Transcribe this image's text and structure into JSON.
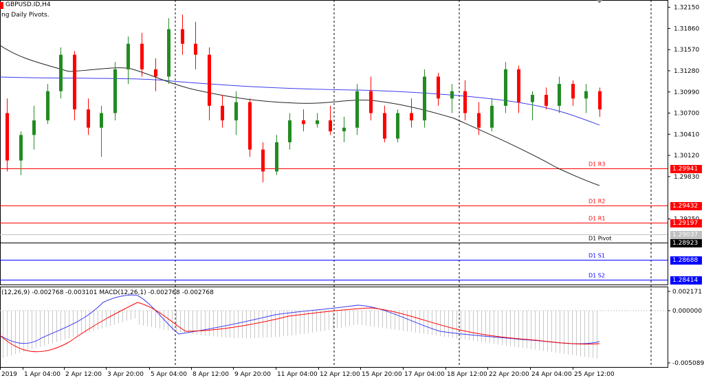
{
  "window": {
    "symbol_title": "GBPUSD.ID,H4",
    "indicator_name": "ng Daily Pivots.",
    "macd_title": "(12,26,9) -0.002768 -0.003101 MACD(12,26,1) -0.002768 -0.002768"
  },
  "colors": {
    "bull": "#228b22",
    "bear": "#ff0000",
    "ma_slow": "#3a3af0",
    "ma_fast": "#333333",
    "resistance": "#ff0000",
    "support": "#0000ff",
    "pivot": "#000000",
    "grid": "#000000"
  },
  "price_axis": {
    "ticks": [
      "1.32150",
      "1.31860",
      "1.31570",
      "1.31280",
      "1.30990",
      "1.30700",
      "1.30410",
      "1.30120",
      "1.29830",
      "1.29250"
    ],
    "price_min": 1.2835,
    "price_max": 1.3225,
    "current_price": "1.29037"
  },
  "pivots": [
    {
      "name": "D1 R3",
      "value": "1.29941",
      "type": "resistance"
    },
    {
      "name": "D1 R2",
      "value": "1.29432",
      "type": "resistance"
    },
    {
      "name": "D1 R1",
      "value": "1.29197",
      "type": "resistance"
    },
    {
      "name": "D1 Pivot",
      "value": "1.28923",
      "type": "pivot"
    },
    {
      "name": "D1 S1",
      "value": "1.28688",
      "type": "support"
    },
    {
      "name": "D1 S2",
      "value": "1.28414",
      "type": "support"
    }
  ],
  "macd_axis": {
    "ticks": [
      "0.002171",
      "0.000000",
      "-0.005089"
    ]
  },
  "time_axis": {
    "labels": [
      "2019",
      "1 Apr 04:00",
      "2 Apr 12:00",
      "3 Apr 20:00",
      "5 Apr 04:00",
      "8 Apr 12:00",
      "9 Apr 20:00",
      "11 Apr 04:00",
      "12 Apr 12:00",
      "15 Apr 20:00",
      "17 Apr 04:00",
      "18 Apr 12:00",
      "22 Apr 20:00",
      "24 Apr 04:00",
      "25 Apr 12:00"
    ]
  },
  "chart_data": {
    "type": "candlestick",
    "symbol": "GBPUSD.ID",
    "timeframe": "H4",
    "candles": [
      [
        1.307,
        1.309,
        1.299,
        1.3005
      ],
      [
        1.3005,
        1.3045,
        1.2985,
        1.304
      ],
      [
        1.304,
        1.308,
        1.302,
        1.306
      ],
      [
        1.306,
        1.311,
        1.3055,
        1.31
      ],
      [
        1.31,
        1.316,
        1.309,
        1.315
      ],
      [
        1.315,
        1.3155,
        1.306,
        1.3075
      ],
      [
        1.3075,
        1.309,
        1.304,
        1.305
      ],
      [
        1.305,
        1.308,
        1.301,
        1.307
      ],
      [
        1.307,
        1.314,
        1.306,
        1.313
      ],
      [
        1.313,
        1.3175,
        1.311,
        1.3165
      ],
      [
        1.3165,
        1.318,
        1.312,
        1.313
      ],
      [
        1.313,
        1.3145,
        1.31,
        1.312
      ],
      [
        1.312,
        1.32,
        1.311,
        1.3185
      ],
      [
        1.3185,
        1.3205,
        1.315,
        1.3165
      ],
      [
        1.3165,
        1.3195,
        1.313,
        1.315
      ],
      [
        1.315,
        1.316,
        1.306,
        1.308
      ],
      [
        1.308,
        1.3095,
        1.305,
        1.306
      ],
      [
        1.306,
        1.31,
        1.304,
        1.3085
      ],
      [
        1.3085,
        1.309,
        1.301,
        1.302
      ],
      [
        1.302,
        1.303,
        1.2975,
        1.299
      ],
      [
        1.299,
        1.304,
        1.2985,
        1.303
      ],
      [
        1.303,
        1.307,
        1.302,
        1.306
      ],
      [
        1.306,
        1.3075,
        1.3045,
        1.3055
      ],
      [
        1.3055,
        1.307,
        1.305,
        1.306
      ],
      [
        1.306,
        1.308,
        1.304,
        1.3045
      ],
      [
        1.3045,
        1.3065,
        1.303,
        1.305
      ],
      [
        1.305,
        1.311,
        1.304,
        1.31
      ],
      [
        1.31,
        1.312,
        1.306,
        1.307
      ],
      [
        1.307,
        1.308,
        1.303,
        1.3035
      ],
      [
        1.3035,
        1.3075,
        1.303,
        1.307
      ],
      [
        1.307,
        1.309,
        1.305,
        1.306
      ],
      [
        1.306,
        1.313,
        1.305,
        1.312
      ],
      [
        1.312,
        1.3125,
        1.308,
        1.309
      ],
      [
        1.309,
        1.311,
        1.307,
        1.31
      ],
      [
        1.31,
        1.3115,
        1.306,
        1.307
      ],
      [
        1.307,
        1.3085,
        1.304,
        1.305
      ],
      [
        1.305,
        1.309,
        1.3045,
        1.308
      ],
      [
        1.308,
        1.314,
        1.307,
        1.313
      ],
      [
        1.313,
        1.3135,
        1.307,
        1.3085
      ],
      [
        1.3085,
        1.31,
        1.306,
        1.3095
      ],
      [
        1.3095,
        1.3105,
        1.3075,
        1.308
      ],
      [
        1.308,
        1.312,
        1.307,
        1.311
      ],
      [
        1.311,
        1.3115,
        1.308,
        1.309
      ],
      [
        1.309,
        1.311,
        1.307,
        1.31
      ],
      [
        1.31,
        1.3105,
        1.3065,
        1.3075
      ]
    ],
    "ma_fast_label": "",
    "ma_slow_label": "",
    "price_range": [
      1.2835,
      1.3225
    ]
  }
}
